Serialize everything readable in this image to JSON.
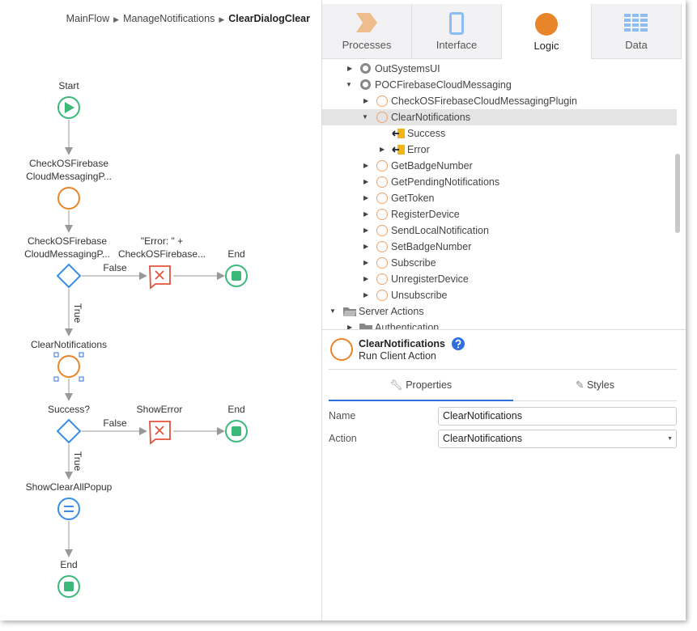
{
  "breadcrumb": [
    "MainFlow",
    "ManageNotifications",
    "ClearDialogClear"
  ],
  "flow": {
    "start": "Start",
    "check_label": [
      "CheckOSFirebase",
      "CloudMessagingP..."
    ],
    "if1_label": [
      "CheckOSFirebase",
      "CloudMessagingP..."
    ],
    "error1_label": [
      "\"Error: \" +",
      "CheckOSFirebase..."
    ],
    "end": "End",
    "false": "False",
    "true": "True",
    "clear_label": "ClearNotifications",
    "if2_label": "Success?",
    "error2_label": "ShowError",
    "popup_label": "ShowClearAllPopup"
  },
  "tabs": [
    {
      "label": "Processes"
    },
    {
      "label": "Interface"
    },
    {
      "label": "Logic"
    },
    {
      "label": "Data"
    }
  ],
  "tree": [
    {
      "label": "OutSystemsUI",
      "expanded": false
    },
    {
      "label": "POCFirebaseCloudMessaging",
      "expanded": true
    },
    {
      "label": "CheckOSFirebaseCloudMessagingPlugin"
    },
    {
      "label": "ClearNotifications",
      "selected": true
    },
    {
      "label": "Success"
    },
    {
      "label": "Error"
    },
    {
      "label": "GetBadgeNumber"
    },
    {
      "label": "GetPendingNotifications"
    },
    {
      "label": "GetToken"
    },
    {
      "label": "RegisterDevice"
    },
    {
      "label": "SendLocalNotification"
    },
    {
      "label": "SetBadgeNumber"
    },
    {
      "label": "Subscribe"
    },
    {
      "label": "UnregisterDevice"
    },
    {
      "label": "Unsubscribe"
    },
    {
      "label": "Server Actions"
    },
    {
      "label": "Authentication"
    }
  ],
  "info": {
    "title": "ClearNotifications",
    "subtitle": "Run Client Action"
  },
  "prop_tabs": {
    "properties": "Properties",
    "styles": "Styles"
  },
  "fields": {
    "name_label": "Name",
    "name_value": "ClearNotifications",
    "action_label": "Action",
    "action_value": "ClearNotifications"
  },
  "colors": {
    "accent": "#2f6fdd",
    "logic": "#e8842a",
    "end": "#3cb878",
    "error": "#e0533d",
    "decision": "#3a8ee6"
  }
}
